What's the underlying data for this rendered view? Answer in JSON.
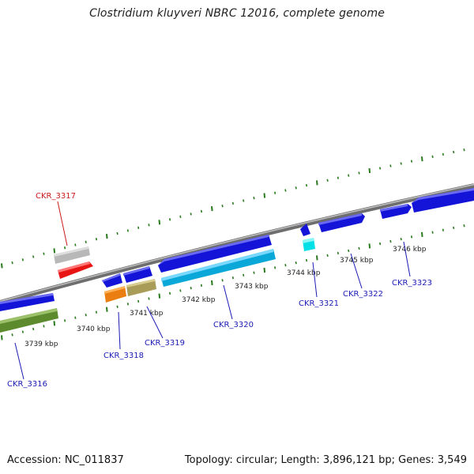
{
  "title": "Clostridium kluyveri NBRC 12016, complete genome",
  "footer": {
    "accession": "Accession: NC_011837",
    "summary": "Topology: circular; Length: 3,896,121 bp; Genes: 3,549"
  },
  "colors": {
    "backbone": "#8a8a8a",
    "tick": "#2a7a1e",
    "label_blue": "#1a1ab4",
    "label_red": "#cc1a1a"
  },
  "scale_labels": [
    "3739 kbp",
    "3740 kbp",
    "3741 kbp",
    "3742 kbp",
    "3743 kbp",
    "3744 kbp",
    "3745 kbp",
    "3746 kbp"
  ],
  "genes": [
    {
      "id": "CKR_3316",
      "highlighted": false
    },
    {
      "id": "CKR_3317",
      "highlighted": true
    },
    {
      "id": "CKR_3318",
      "highlighted": false
    },
    {
      "id": "CKR_3319",
      "highlighted": false
    },
    {
      "id": "CKR_3320",
      "highlighted": false
    },
    {
      "id": "CKR_3321",
      "highlighted": false
    },
    {
      "id": "CKR_3322",
      "highlighted": false
    },
    {
      "id": "CKR_3323",
      "highlighted": false
    }
  ]
}
